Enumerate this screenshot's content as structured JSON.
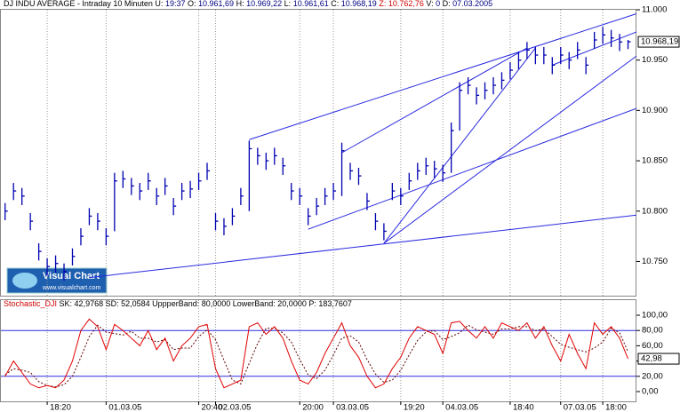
{
  "chart_data": [
    {
      "type": "ohlc",
      "title": "DJ INDU AVERAGE - Intraday 10 Minuten",
      "fields": [
        {
          "label": "U:",
          "value": "19:37"
        },
        {
          "label": "O:",
          "value": "10.961,69"
        },
        {
          "label": "H:",
          "value": "10.969,22"
        },
        {
          "label": "L:",
          "value": "10.961,61"
        },
        {
          "label": "C:",
          "value": "10.968,19"
        },
        {
          "label": "Z:",
          "value": "10.762,76"
        },
        {
          "label": "V:",
          "value": "0"
        },
        {
          "label": "D:",
          "value": "07.03.2005"
        }
      ],
      "color": "#0000b0",
      "high": [
        10808,
        10828,
        10823,
        10798,
        10768,
        10753,
        10756,
        10748,
        10763,
        10783,
        10803,
        10798,
        10783,
        10838,
        10840,
        10833,
        10828,
        10838,
        10823,
        10833,
        10813,
        10828,
        10830,
        10838,
        10848,
        10798,
        10793,
        10803,
        10823,
        10870,
        10863,
        10858,
        10863,
        10853,
        10828,
        10823,
        10803,
        10813,
        10823,
        10828,
        10868,
        10848,
        10843,
        10818,
        10798,
        10788,
        10828,
        10823,
        10838,
        10848,
        10853,
        10850,
        10846,
        10888,
        10928,
        10933,
        10923,
        10928,
        10933,
        10938,
        10948,
        10958,
        10968,
        10963,
        10963,
        10953,
        10963,
        10958,
        10968,
        10953,
        10978,
        10983,
        10980,
        10976,
        10970
      ],
      "low": [
        10791,
        10811,
        10806,
        10781,
        10751,
        10736,
        10739,
        10731,
        10746,
        10766,
        10786,
        10781,
        10766,
        10780,
        10823,
        10816,
        10811,
        10821,
        10806,
        10816,
        10796,
        10811,
        10813,
        10821,
        10831,
        10781,
        10776,
        10786,
        10806,
        10800,
        10846,
        10841,
        10846,
        10836,
        10811,
        10806,
        10786,
        10796,
        10806,
        10811,
        10815,
        10831,
        10826,
        10801,
        10781,
        10771,
        10811,
        10806,
        10821,
        10831,
        10836,
        10833,
        10829,
        10838,
        10880,
        10916,
        10906,
        10911,
        10916,
        10921,
        10931,
        10941,
        10951,
        10946,
        10946,
        10936,
        10946,
        10941,
        10951,
        10936,
        10961,
        10966,
        10963,
        10959,
        10961
      ],
      "close": [
        10800,
        10820,
        10815,
        10790,
        10760,
        10745,
        10748,
        10740,
        10755,
        10775,
        10795,
        10790,
        10775,
        10830,
        10832,
        10825,
        10820,
        10830,
        10815,
        10825,
        10805,
        10820,
        10822,
        10830,
        10840,
        10790,
        10785,
        10795,
        10815,
        10862,
        10855,
        10850,
        10855,
        10845,
        10820,
        10815,
        10795,
        10805,
        10815,
        10820,
        10860,
        10840,
        10835,
        10810,
        10790,
        10780,
        10820,
        10815,
        10830,
        10840,
        10845,
        10842,
        10838,
        10880,
        10920,
        10925,
        10915,
        10920,
        10925,
        10930,
        10940,
        10950,
        10960,
        10955,
        10955,
        10945,
        10955,
        10950,
        10960,
        10945,
        10970,
        10975,
        10972,
        10968,
        10968.19
      ],
      "last": {
        "value": 10968.19,
        "label": "10.968,19"
      },
      "trendlines": [
        {
          "x": [
            10,
            75
          ],
          "y": [
            10734,
            10796
          ]
        },
        {
          "x": [
            29,
            75
          ],
          "y": [
            10871,
            10996
          ]
        },
        {
          "x": [
            36,
            75
          ],
          "y": [
            10782,
            10902
          ]
        },
        {
          "x": [
            40,
            62
          ],
          "y": [
            10858,
            10962
          ]
        },
        {
          "x": [
            45,
            75
          ],
          "y": [
            10768,
            10954
          ]
        },
        {
          "x": [
            45,
            63
          ],
          "y": [
            10768,
            10962
          ]
        },
        {
          "x": [
            65,
            75
          ],
          "y": [
            10945,
            10978
          ]
        }
      ],
      "trend_color": "#2a2ae0",
      "xlim": [
        -0.5,
        75
      ],
      "ylim": [
        10716,
        11000
      ],
      "yticks": [
        {
          "value": 10750,
          "label": "10.750"
        },
        {
          "value": 10800,
          "label": "10.800"
        },
        {
          "value": 10850,
          "label": "10.850"
        },
        {
          "value": 10900,
          "label": "10.900"
        },
        {
          "value": 10950,
          "label": "10.950"
        },
        {
          "value": 11000,
          "label": "11.000"
        }
      ],
      "logo": {
        "title": "Visual Chart",
        "url": "www.visualchart.com"
      }
    },
    {
      "type": "line",
      "title": "Stochastic_DJI",
      "fields": [
        "SK: 42,9768",
        "SD: 52,0584",
        "UppperBand: 80,0000",
        "LowerBand: 20,0000",
        "P: 183,7607"
      ],
      "series": [
        {
          "name": "SK",
          "color": "#e00000",
          "dashed": false,
          "values": [
            20,
            40,
            25,
            10,
            5,
            8,
            5,
            15,
            40,
            80,
            95,
            85,
            55,
            88,
            80,
            70,
            60,
            80,
            55,
            70,
            40,
            60,
            70,
            85,
            88,
            30,
            5,
            10,
            15,
            85,
            90,
            75,
            85,
            70,
            40,
            15,
            10,
            25,
            50,
            70,
            90,
            60,
            45,
            20,
            5,
            10,
            30,
            45,
            70,
            85,
            80,
            75,
            50,
            90,
            92,
            80,
            70,
            85,
            70,
            90,
            85,
            80,
            90,
            70,
            85,
            60,
            40,
            75,
            50,
            30,
            90,
            75,
            85,
            70,
            42.98
          ]
        },
        {
          "name": "SD",
          "color": "#600000",
          "dashed": true,
          "values": [
            22,
            30,
            28,
            25,
            13,
            8,
            6,
            9,
            20,
            45,
            72,
            87,
            78,
            76,
            74,
            79,
            70,
            70,
            65,
            68,
            55,
            57,
            57,
            72,
            81,
            68,
            41,
            15,
            10,
            37,
            63,
            83,
            83,
            77,
            65,
            42,
            22,
            17,
            28,
            48,
            70,
            73,
            65,
            42,
            23,
            12,
            15,
            28,
            48,
            67,
            78,
            80,
            68,
            72,
            77,
            87,
            81,
            78,
            75,
            82,
            82,
            85,
            85,
            80,
            82,
            72,
            62,
            58,
            55,
            52,
            57,
            65,
            83,
            77,
            52.06
          ]
        }
      ],
      "last": {
        "value": 42.98,
        "label": "42,98"
      },
      "bands": [
        80,
        20
      ],
      "band_color": "#2a2ae0",
      "xlim": [
        -0.5,
        75
      ],
      "ylim": [
        -12.8,
        119.8
      ],
      "yticks": [
        {
          "value": 100,
          "label": "100,00"
        },
        {
          "value": 80,
          "label": "80,00"
        },
        {
          "value": 60,
          "label": "60,00"
        },
        {
          "value": 40,
          "label": "40,00"
        },
        {
          "value": 20,
          "label": "20,00"
        },
        {
          "value": 0,
          "label": "0,00"
        }
      ],
      "xticks": [
        {
          "value": 5,
          "label": "18:20"
        },
        {
          "value": 12,
          "label": "01.03.05"
        },
        {
          "value": 23,
          "label": "20:40"
        },
        {
          "value": 25,
          "label": "02.03.05"
        },
        {
          "value": 35,
          "label": "20:00"
        },
        {
          "value": 39,
          "label": "03.03.05"
        },
        {
          "value": 47,
          "label": "19:20"
        },
        {
          "value": 52,
          "label": "04.03.05"
        },
        {
          "value": 60,
          "label": "18:40"
        },
        {
          "value": 66,
          "label": "07.03.05"
        },
        {
          "value": 71,
          "label": "18:00"
        }
      ]
    }
  ]
}
